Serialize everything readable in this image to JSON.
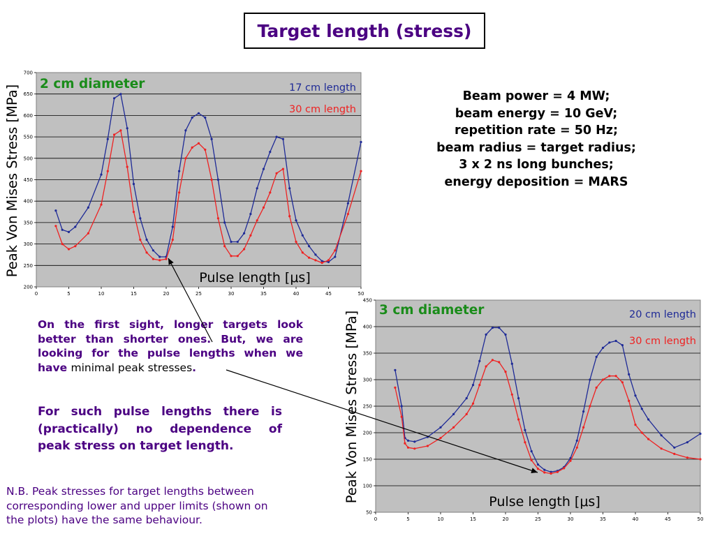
{
  "title": "Target length (stress)",
  "colors": {
    "title": "#4B0082",
    "plot_area": "#C0C0C0",
    "series_blue": "#1E2A96",
    "series_red": "#EE2222",
    "diameter_label": "#1A8C1A",
    "text_purple": "#4B0082"
  },
  "info_lines": [
    "Beam power = 4 MW;",
    "beam energy = 10 GeV;",
    "repetition rate = 50 Hz;",
    "beam radius = target radius;",
    "3 x 2 ns long bunches;",
    "energy deposition = MARS"
  ],
  "paragraph1": {
    "lines": [
      "On the first sight, longer targets look",
      "better than shorter ones. But, we are",
      "looking for the pulse lengths when we"
    ],
    "last_prefix": "have ",
    "last_emph": "minimal peak stresses",
    "last_suffix": "."
  },
  "paragraph2": {
    "lines": [
      "For such pulse lengths there is",
      "(practically) no dependence of",
      "peak stress on target length."
    ]
  },
  "nb": {
    "lines": [
      "N.B. Peak stresses for target lengths between",
      "corresponding lower and upper limits (shown on",
      "the plots) have the same behaviour."
    ]
  },
  "chart_data": [
    {
      "type": "line",
      "title": "2 cm diameter",
      "xlabel": "Pulse length [μs]",
      "ylabel": "Peak Von Mises Stress [MPa]",
      "xlim": [
        0,
        50
      ],
      "ylim": [
        200,
        700
      ],
      "x_ticks": [
        0,
        5,
        10,
        15,
        20,
        25,
        30,
        35,
        40,
        45,
        50
      ],
      "y_ticks": [
        200,
        250,
        300,
        350,
        400,
        450,
        500,
        550,
        600,
        650,
        700
      ],
      "grid": true,
      "series": [
        {
          "name": "17 cm length",
          "color": "#1E2A96",
          "x": [
            3,
            4,
            5,
            6,
            8,
            10,
            11,
            12,
            13,
            14,
            15,
            16,
            17,
            18,
            19,
            20,
            21,
            22,
            23,
            24,
            25,
            26,
            27,
            28,
            29,
            30,
            31,
            32,
            33,
            34,
            35,
            36,
            37,
            38,
            39,
            40,
            41,
            42,
            43,
            44,
            45,
            46,
            48,
            50
          ],
          "y": [
            378,
            333,
            328,
            340,
            385,
            462,
            545,
            640,
            650,
            570,
            440,
            360,
            310,
            285,
            270,
            270,
            340,
            470,
            565,
            595,
            605,
            595,
            545,
            450,
            350,
            305,
            305,
            325,
            370,
            430,
            475,
            515,
            550,
            545,
            430,
            355,
            320,
            295,
            275,
            260,
            258,
            270,
            395,
            538
          ]
        },
        {
          "name": "30 cm length",
          "color": "#EE2222",
          "x": [
            3,
            4,
            5,
            6,
            8,
            10,
            11,
            12,
            13,
            14,
            15,
            16,
            17,
            18,
            19,
            20,
            21,
            22,
            23,
            24,
            25,
            26,
            27,
            28,
            29,
            30,
            31,
            32,
            33,
            34,
            35,
            36,
            37,
            38,
            39,
            40,
            41,
            42,
            43,
            44,
            45,
            46,
            48,
            50
          ],
          "y": [
            342,
            300,
            288,
            295,
            325,
            392,
            470,
            555,
            565,
            480,
            375,
            310,
            280,
            265,
            262,
            265,
            310,
            420,
            500,
            525,
            535,
            520,
            450,
            360,
            295,
            272,
            272,
            288,
            320,
            355,
            385,
            420,
            465,
            475,
            365,
            305,
            280,
            268,
            262,
            256,
            262,
            285,
            370,
            470
          ]
        }
      ]
    },
    {
      "type": "line",
      "title": "3 cm diameter",
      "xlabel": "Pulse length [μs]",
      "ylabel": "Peak Von Mises Stress [MPa]",
      "xlim": [
        0,
        50
      ],
      "ylim": [
        50,
        450
      ],
      "x_ticks": [
        0,
        5,
        10,
        15,
        20,
        25,
        30,
        35,
        40,
        45,
        50
      ],
      "y_ticks": [
        50,
        100,
        150,
        200,
        250,
        300,
        350,
        400,
        450
      ],
      "grid": true,
      "series": [
        {
          "name": "20 cm length",
          "color": "#1E2A96",
          "x": [
            3,
            4,
            4.5,
            5,
            6,
            8,
            10,
            12,
            14,
            15,
            16,
            17,
            18,
            19,
            20,
            21,
            22,
            23,
            24,
            25,
            26,
            27,
            28,
            29,
            30,
            31,
            32,
            33,
            34,
            35,
            36,
            37,
            38,
            39,
            40,
            41,
            42,
            44,
            46,
            48,
            50
          ],
          "y": [
            318,
            250,
            190,
            185,
            183,
            192,
            210,
            235,
            265,
            290,
            335,
            385,
            398,
            398,
            385,
            330,
            265,
            205,
            165,
            140,
            130,
            126,
            128,
            135,
            152,
            185,
            240,
            300,
            343,
            360,
            370,
            373,
            365,
            310,
            270,
            245,
            225,
            195,
            172,
            182,
            198
          ]
        },
        {
          "name": "30 cm length",
          "color": "#EE2222",
          "x": [
            3,
            4,
            4.5,
            5,
            6,
            8,
            10,
            12,
            14,
            15,
            16,
            17,
            18,
            19,
            20,
            21,
            22,
            23,
            24,
            25,
            26,
            27,
            28,
            29,
            30,
            31,
            32,
            33,
            34,
            35,
            36,
            37,
            38,
            39,
            40,
            41,
            42,
            44,
            46,
            48,
            50
          ],
          "y": [
            285,
            230,
            180,
            172,
            170,
            175,
            190,
            210,
            235,
            255,
            290,
            325,
            337,
            333,
            315,
            272,
            225,
            182,
            148,
            132,
            125,
            123,
            126,
            133,
            147,
            172,
            210,
            250,
            285,
            300,
            307,
            307,
            295,
            260,
            215,
            200,
            188,
            170,
            160,
            153,
            150
          ]
        }
      ]
    }
  ]
}
